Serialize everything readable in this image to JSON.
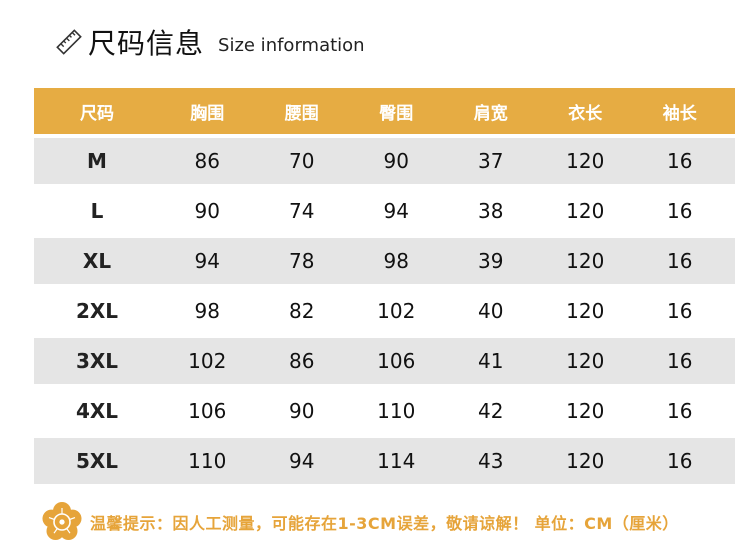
{
  "title": {
    "cn": "尺码信息",
    "en": "Size information"
  },
  "headers": [
    "尺码",
    "胸围",
    "腰围",
    "臀围",
    "肩宽",
    "衣长",
    "袖长"
  ],
  "rows": [
    [
      "M",
      "86",
      "70",
      "90",
      "37",
      "120",
      "16"
    ],
    [
      "L",
      "90",
      "74",
      "94",
      "38",
      "120",
      "16"
    ],
    [
      "XL",
      "94",
      "78",
      "98",
      "39",
      "120",
      "16"
    ],
    [
      "2XL",
      "98",
      "82",
      "102",
      "40",
      "120",
      "16"
    ],
    [
      "3XL",
      "102",
      "86",
      "106",
      "41",
      "120",
      "16"
    ],
    [
      "4XL",
      "106",
      "90",
      "110",
      "42",
      "120",
      "16"
    ],
    [
      "5XL",
      "110",
      "94",
      "114",
      "43",
      "120",
      "16"
    ]
  ],
  "note": "温馨提示：因人工测量，可能存在1-3CM误差，敬请谅解！ 单位：CM（厘米）",
  "colors": {
    "header_bg": "#e6ac43",
    "shade_row": "#e5e5e5",
    "note": "#e6a43a"
  },
  "icons": {
    "title": "ruler-icon",
    "note": "flower-icon"
  }
}
